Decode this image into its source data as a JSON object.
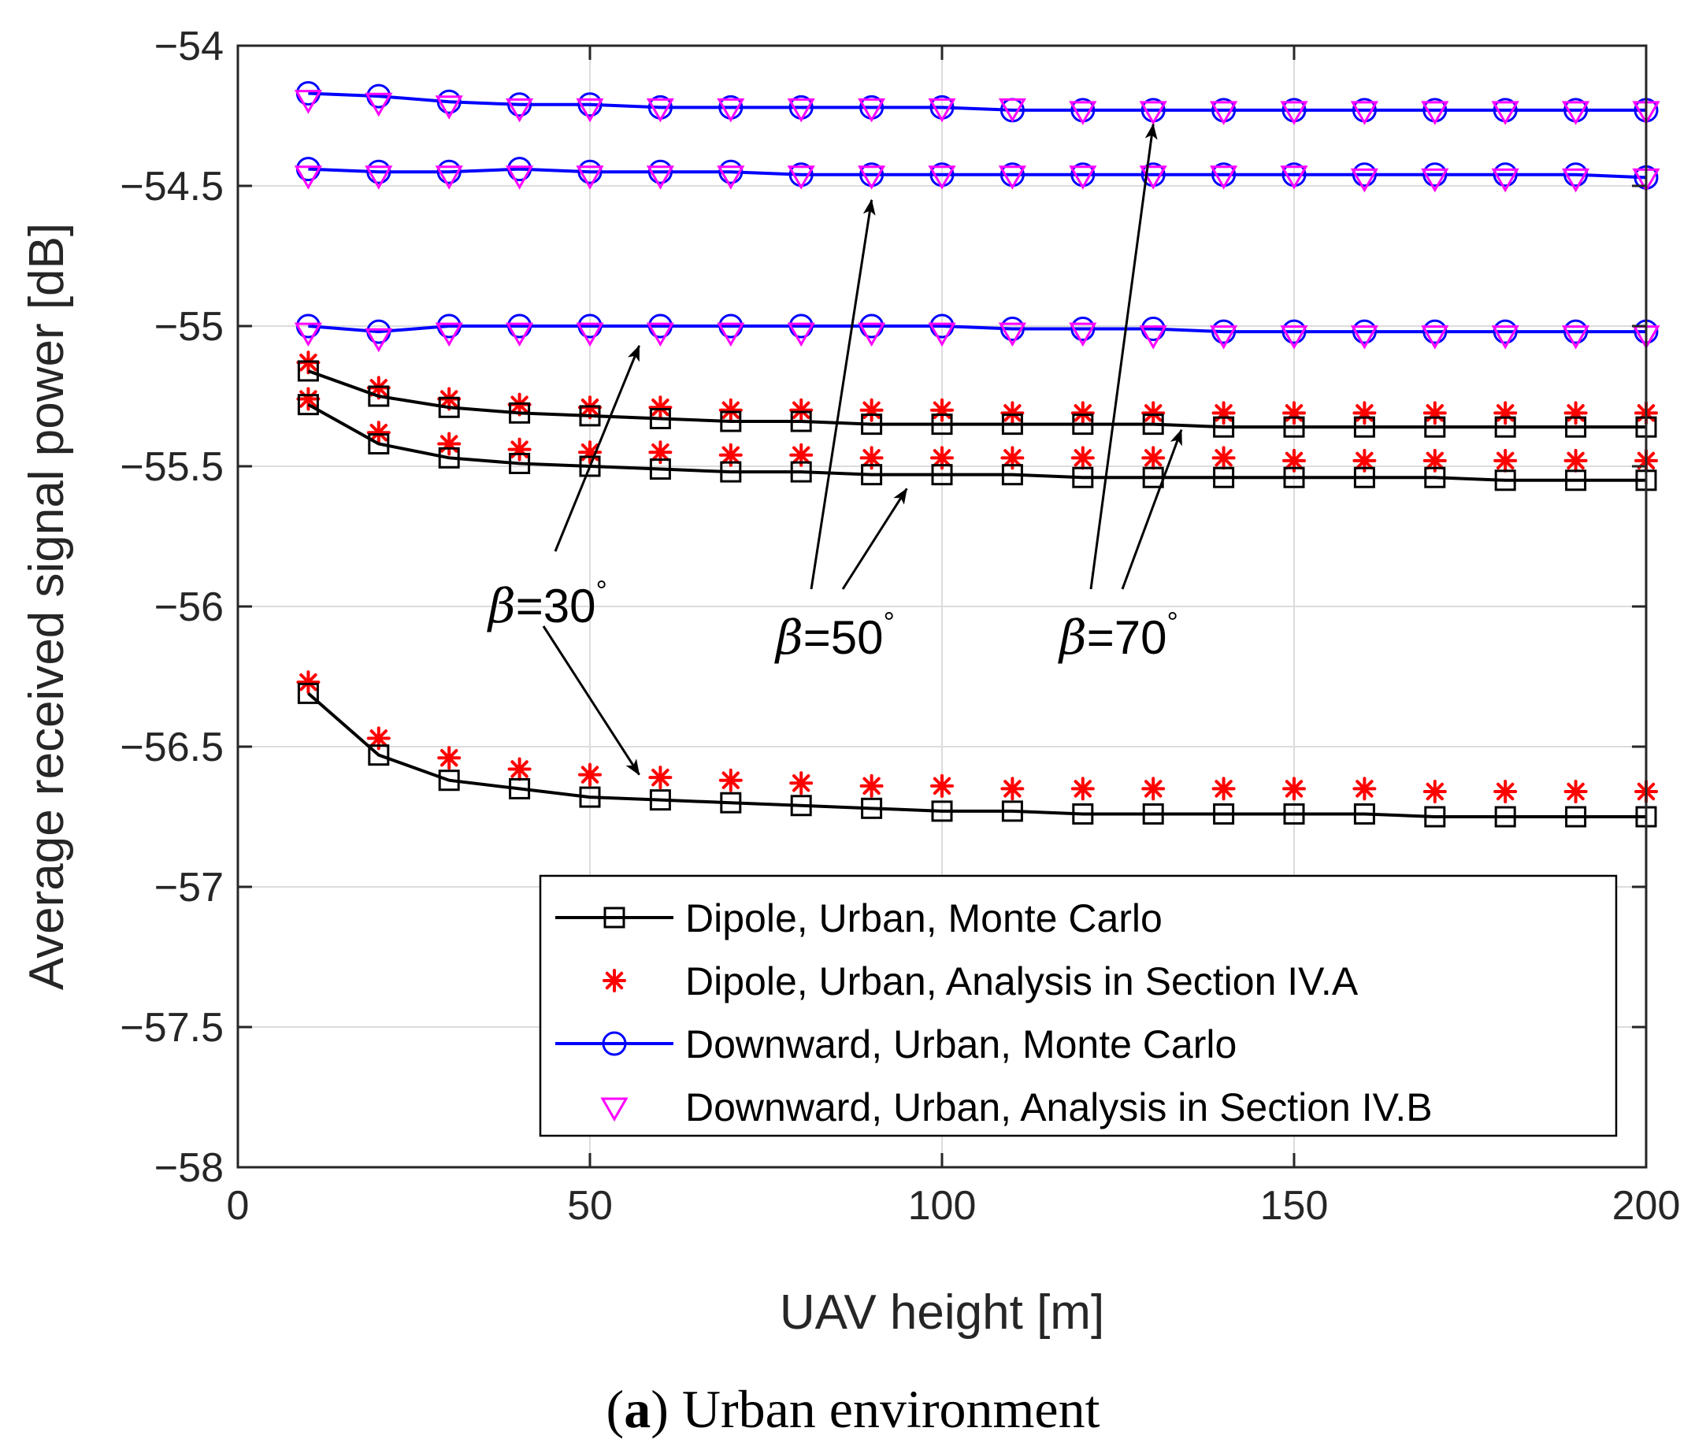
{
  "chart_data": {
    "type": "line",
    "title": "",
    "xlabel": "UAV height [m]",
    "ylabel": "Average received signal power [dB]",
    "xlim": [
      0,
      200
    ],
    "ylim": [
      -58,
      -54
    ],
    "xticks": [
      0,
      50,
      100,
      150,
      200
    ],
    "xtick_labels": [
      "0",
      "50",
      "100",
      "150",
      "200"
    ],
    "yticks": [
      -54,
      -54.5,
      -55,
      -55.5,
      -56,
      -56.5,
      -57,
      -57.5,
      -58
    ],
    "ytick_labels": [
      "−54",
      "−54.5",
      "−55",
      "−55.5",
      "−56",
      "−56.5",
      "−57",
      "−57.5",
      "−58"
    ],
    "grid": true,
    "legend_position": "bottom-right",
    "x": [
      10,
      20,
      30,
      40,
      50,
      60,
      70,
      80,
      90,
      100,
      110,
      120,
      130,
      140,
      150,
      160,
      170,
      180,
      190,
      200
    ],
    "series": [
      {
        "name": "Dipole, Urban, Monte Carlo",
        "style": "dipole-mc",
        "group": "beta30",
        "values": [
          -56.31,
          -56.53,
          -56.62,
          -56.65,
          -56.68,
          -56.69,
          -56.7,
          -56.71,
          -56.72,
          -56.73,
          -56.73,
          -56.74,
          -56.74,
          -56.74,
          -56.74,
          -56.74,
          -56.75,
          -56.75,
          -56.75,
          -56.75
        ]
      },
      {
        "name": "Dipole, Urban, Analysis in Section IV.A",
        "style": "dipole-an",
        "group": "beta30",
        "values": [
          -56.27,
          -56.47,
          -56.54,
          -56.58,
          -56.6,
          -56.61,
          -56.62,
          -56.63,
          -56.64,
          -56.64,
          -56.65,
          -56.65,
          -56.65,
          -56.65,
          -56.65,
          -56.65,
          -56.66,
          -56.66,
          -56.66,
          -56.66
        ]
      },
      {
        "name": "Dipole, Urban, Monte Carlo",
        "style": "dipole-mc",
        "group": "beta50",
        "values": [
          -55.28,
          -55.42,
          -55.47,
          -55.49,
          -55.5,
          -55.51,
          -55.52,
          -55.52,
          -55.53,
          -55.53,
          -55.53,
          -55.54,
          -55.54,
          -55.54,
          -55.54,
          -55.54,
          -55.54,
          -55.55,
          -55.55,
          -55.55
        ]
      },
      {
        "name": "Dipole, Urban, Analysis in Section IV.A",
        "style": "dipole-an",
        "group": "beta50",
        "values": [
          -55.26,
          -55.38,
          -55.42,
          -55.44,
          -55.45,
          -55.45,
          -55.46,
          -55.46,
          -55.47,
          -55.47,
          -55.47,
          -55.47,
          -55.47,
          -55.47,
          -55.48,
          -55.48,
          -55.48,
          -55.48,
          -55.48,
          -55.48
        ]
      },
      {
        "name": "Dipole, Urban, Monte Carlo",
        "style": "dipole-mc",
        "group": "beta70",
        "values": [
          -55.16,
          -55.25,
          -55.29,
          -55.31,
          -55.32,
          -55.33,
          -55.34,
          -55.34,
          -55.35,
          -55.35,
          -55.35,
          -55.35,
          -55.35,
          -55.36,
          -55.36,
          -55.36,
          -55.36,
          -55.36,
          -55.36,
          -55.36
        ]
      },
      {
        "name": "Dipole, Urban, Analysis in Section IV.A",
        "style": "dipole-an",
        "group": "beta70",
        "values": [
          -55.13,
          -55.22,
          -55.26,
          -55.28,
          -55.29,
          -55.29,
          -55.3,
          -55.3,
          -55.3,
          -55.3,
          -55.31,
          -55.31,
          -55.31,
          -55.31,
          -55.31,
          -55.31,
          -55.31,
          -55.31,
          -55.31,
          -55.31
        ]
      },
      {
        "name": "Downward, Urban, Monte Carlo",
        "style": "down-mc",
        "group": "beta30",
        "values": [
          -55.0,
          -55.02,
          -55.0,
          -55.0,
          -55.0,
          -55.0,
          -55.0,
          -55.0,
          -55.0,
          -55.0,
          -55.01,
          -55.01,
          -55.01,
          -55.02,
          -55.02,
          -55.02,
          -55.02,
          -55.02,
          -55.02,
          -55.02
        ]
      },
      {
        "name": "Downward, Urban, Analysis in Section IV.B",
        "style": "down-an",
        "group": "beta30",
        "values": [
          -55.02,
          -55.04,
          -55.02,
          -55.02,
          -55.02,
          -55.02,
          -55.02,
          -55.02,
          -55.02,
          -55.02,
          -55.02,
          -55.02,
          -55.03,
          -55.03,
          -55.03,
          -55.03,
          -55.03,
          -55.03,
          -55.03,
          -55.03
        ]
      },
      {
        "name": "Downward, Urban, Monte Carlo",
        "style": "down-mc",
        "group": "beta50",
        "values": [
          -54.44,
          -54.45,
          -54.45,
          -54.44,
          -54.45,
          -54.45,
          -54.45,
          -54.46,
          -54.46,
          -54.46,
          -54.46,
          -54.46,
          -54.46,
          -54.46,
          -54.46,
          -54.46,
          -54.46,
          -54.46,
          -54.46,
          -54.47
        ]
      },
      {
        "name": "Downward, Urban, Analysis in Section IV.B",
        "style": "down-an",
        "group": "beta50",
        "values": [
          -54.46,
          -54.46,
          -54.46,
          -54.46,
          -54.46,
          -54.46,
          -54.46,
          -54.46,
          -54.46,
          -54.46,
          -54.46,
          -54.46,
          -54.46,
          -54.46,
          -54.46,
          -54.47,
          -54.47,
          -54.47,
          -54.47,
          -54.47
        ]
      },
      {
        "name": "Downward, Urban, Monte Carlo",
        "style": "down-mc",
        "group": "beta70",
        "values": [
          -54.17,
          -54.18,
          -54.2,
          -54.21,
          -54.21,
          -54.22,
          -54.22,
          -54.22,
          -54.22,
          -54.22,
          -54.23,
          -54.23,
          -54.23,
          -54.23,
          -54.23,
          -54.23,
          -54.23,
          -54.23,
          -54.23,
          -54.23
        ]
      },
      {
        "name": "Downward, Urban, Analysis in Section IV.B",
        "style": "down-an",
        "group": "beta70",
        "values": [
          -54.19,
          -54.2,
          -54.21,
          -54.22,
          -54.22,
          -54.22,
          -54.22,
          -54.22,
          -54.22,
          -54.22,
          -54.22,
          -54.23,
          -54.23,
          -54.23,
          -54.23,
          -54.23,
          -54.23,
          -54.23,
          -54.23,
          -54.23
        ]
      }
    ],
    "legend": [
      {
        "label": "Dipole, Urban, Monte Carlo",
        "style": "dipole-mc"
      },
      {
        "label": "Dipole, Urban, Analysis in Section IV.A",
        "style": "dipole-an"
      },
      {
        "label": "Downward, Urban, Monte Carlo",
        "style": "down-mc"
      },
      {
        "label": "Downward, Urban, Analysis in Section IV.B",
        "style": "down-an"
      }
    ],
    "annotations": [
      {
        "label": "β=30°",
        "symbol": "β",
        "rest": "=30",
        "degree": "°",
        "arrows_to": [
          {
            "x": 57,
            "y": -55.07
          },
          {
            "x": 57,
            "y": -56.6
          }
        ]
      },
      {
        "label": "β=50°",
        "symbol": "β",
        "rest": "=50",
        "degree": "°",
        "arrows_to": [
          {
            "x": 90,
            "y": -54.55
          },
          {
            "x": 95,
            "y": -55.58
          }
        ]
      },
      {
        "label": "β=70°",
        "symbol": "β",
        "rest": "=70",
        "degree": "°",
        "arrows_to": [
          {
            "x": 130,
            "y": -54.28
          },
          {
            "x": 134,
            "y": -55.37
          }
        ]
      }
    ],
    "colors": {
      "dipole_line": "#000000",
      "dipole_marker_analysis": "#ff0000",
      "downward_line": "#0000ff",
      "downward_marker_analysis": "#ff00ff",
      "grid": "#dcdcdc",
      "axis": "#262626"
    }
  },
  "caption": {
    "bold": "a",
    "open": "(",
    "close": ")",
    "text": " Urban environment"
  }
}
